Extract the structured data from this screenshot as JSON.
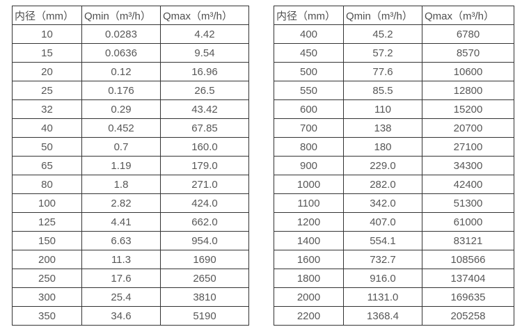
{
  "page": {
    "background_color": "#ffffff",
    "border_color": "#333333",
    "text_color": "#555555"
  },
  "tables": [
    {
      "name": "flow-table-small-diameters",
      "headers": [
        "内径（mm）",
        "Qmin（m³/h）",
        "Qmax（m³/h）"
      ],
      "rows": [
        [
          "10",
          "0.0283",
          "4.42"
        ],
        [
          "15",
          "0.0636",
          "9.54"
        ],
        [
          "20",
          "0.12",
          "16.96"
        ],
        [
          "25",
          "0.176",
          "26.5"
        ],
        [
          "32",
          "0.29",
          "43.42"
        ],
        [
          "40",
          "0.452",
          "67.85"
        ],
        [
          "50",
          "0.7",
          "160.0"
        ],
        [
          "65",
          "1.19",
          "179.0"
        ],
        [
          "80",
          "1.8",
          "271.0"
        ],
        [
          "100",
          "2.82",
          "424.0"
        ],
        [
          "125",
          "4.41",
          "662.0"
        ],
        [
          "150",
          "6.63",
          "954.0"
        ],
        [
          "200",
          "11.3",
          "1690"
        ],
        [
          "250",
          "17.6",
          "2650"
        ],
        [
          "300",
          "25.4",
          "3810"
        ],
        [
          "350",
          "34.6",
          "5190"
        ]
      ]
    },
    {
      "name": "flow-table-large-diameters",
      "headers": [
        "内径（mm）",
        "Qmin（m³/h）",
        "Qmax（m³/h）"
      ],
      "rows": [
        [
          "400",
          "45.2",
          "6780"
        ],
        [
          "450",
          "57.2",
          "8570"
        ],
        [
          "500",
          "77.6",
          "10600"
        ],
        [
          "550",
          "85.5",
          "12800"
        ],
        [
          "600",
          "110",
          "15200"
        ],
        [
          "700",
          "138",
          "20700"
        ],
        [
          "800",
          "180",
          "27100"
        ],
        [
          "900",
          "229.0",
          "34300"
        ],
        [
          "1000",
          "282.0",
          "42400"
        ],
        [
          "1100",
          "342.0",
          "51300"
        ],
        [
          "1200",
          "407.0",
          "61000"
        ],
        [
          "1400",
          "554.1",
          "83121"
        ],
        [
          "1600",
          "732.7",
          "108566"
        ],
        [
          "1800",
          "916.0",
          "137404"
        ],
        [
          "2000",
          "1131.0",
          "169635"
        ],
        [
          "2200",
          "1368.4",
          "205258"
        ]
      ]
    }
  ],
  "column_semantics": [
    "inner-diameter-mm",
    "qmin-m3h",
    "qmax-m3h"
  ]
}
